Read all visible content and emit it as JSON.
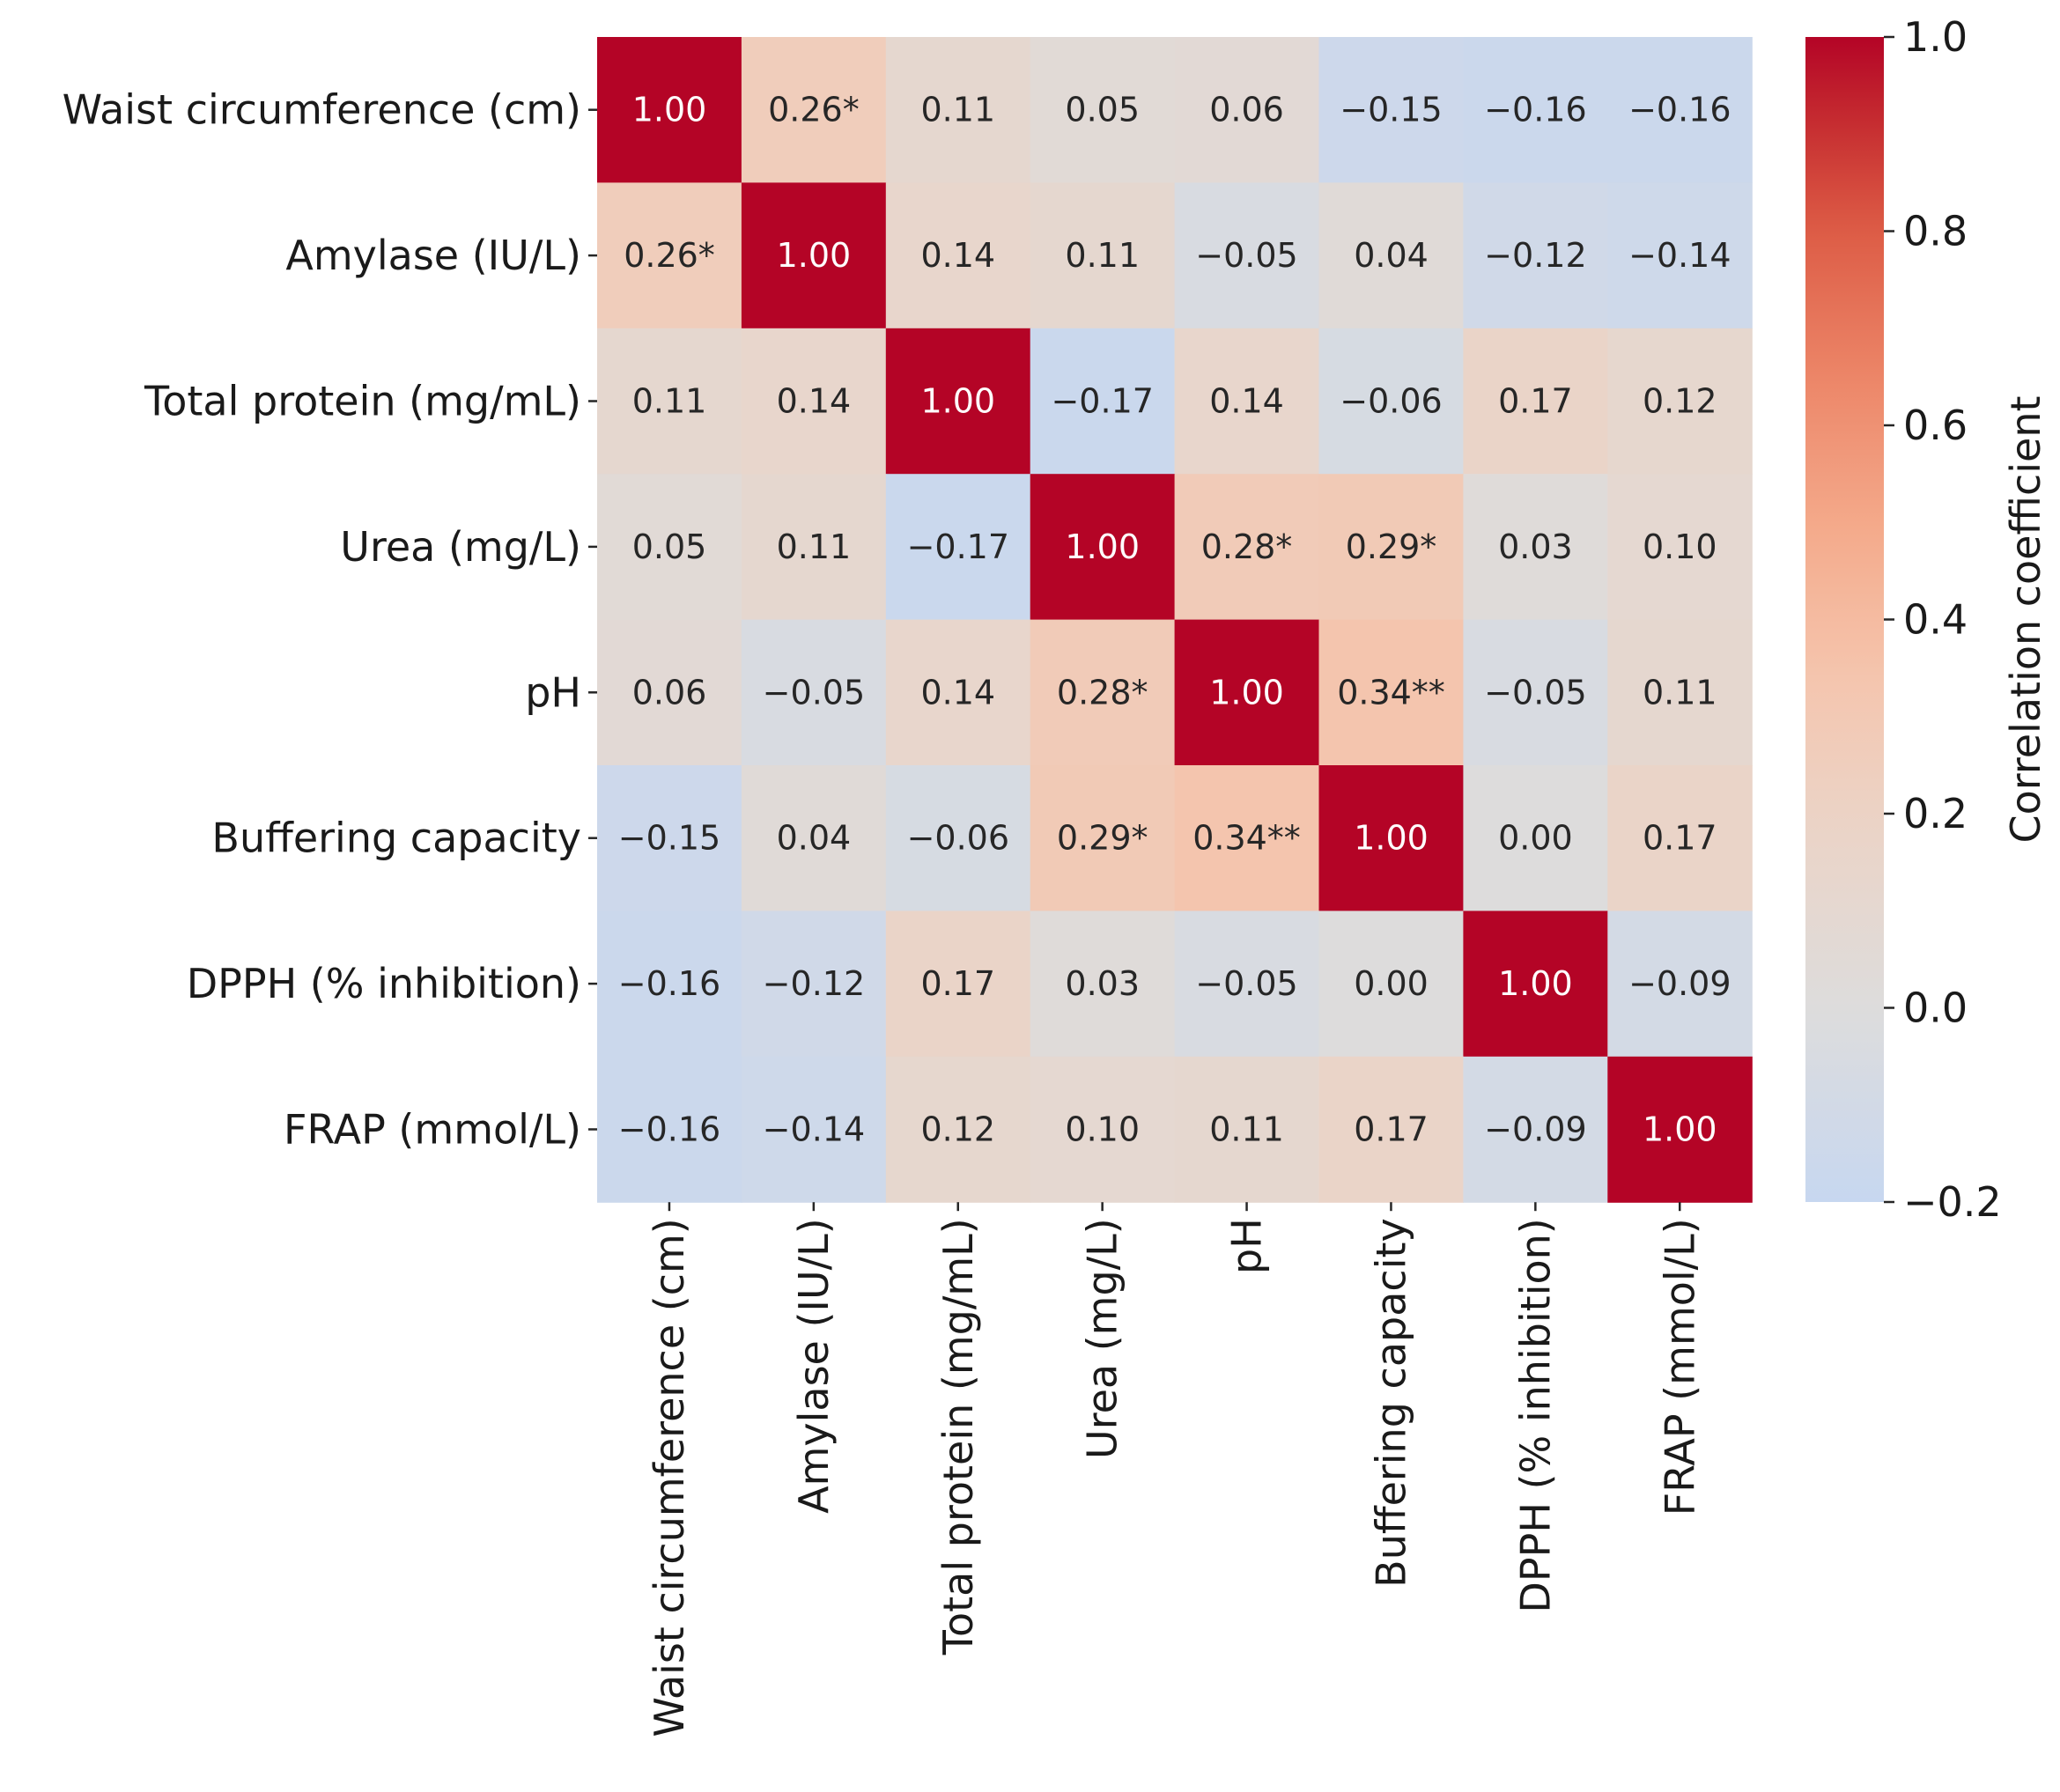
{
  "chart_data": {
    "type": "heatmap",
    "title": "",
    "xlabel": "",
    "ylabel": "",
    "variables": [
      "Waist circumference (cm)",
      "Amylase (IU/L)",
      "Total protein (mg/mL)",
      "Urea (mg/L)",
      "pH",
      "Buffering capacity",
      "DPPH (% inhibition)",
      "FRAP (mmol/L)"
    ],
    "values": [
      [
        1.0,
        0.26,
        0.11,
        0.05,
        0.06,
        -0.15,
        -0.16,
        -0.16
      ],
      [
        0.26,
        1.0,
        0.14,
        0.11,
        -0.05,
        0.04,
        -0.12,
        -0.14
      ],
      [
        0.11,
        0.14,
        1.0,
        -0.17,
        0.14,
        -0.06,
        0.17,
        0.12
      ],
      [
        0.05,
        0.11,
        -0.17,
        1.0,
        0.28,
        0.29,
        0.03,
        0.1
      ],
      [
        0.06,
        -0.05,
        0.14,
        0.28,
        1.0,
        0.34,
        -0.05,
        0.11
      ],
      [
        -0.15,
        0.04,
        -0.06,
        0.29,
        0.34,
        1.0,
        0.0,
        0.17
      ],
      [
        -0.16,
        -0.12,
        0.17,
        0.03,
        -0.05,
        0.0,
        1.0,
        -0.09
      ],
      [
        -0.16,
        -0.14,
        0.12,
        0.1,
        0.11,
        0.17,
        -0.09,
        1.0
      ]
    ],
    "annotations": [
      [
        "1.00",
        "0.26*",
        "0.11",
        "0.05",
        "0.06",
        "−0.15",
        "−0.16",
        "−0.16"
      ],
      [
        "0.26*",
        "1.00",
        "0.14",
        "0.11",
        "−0.05",
        "0.04",
        "−0.12",
        "−0.14"
      ],
      [
        "0.11",
        "0.14",
        "1.00",
        "−0.17",
        "0.14",
        "−0.06",
        "0.17",
        "0.12"
      ],
      [
        "0.05",
        "0.11",
        "−0.17",
        "1.00",
        "0.28*",
        "0.29*",
        "0.03",
        "0.10"
      ],
      [
        "0.06",
        "−0.05",
        "0.14",
        "0.28*",
        "1.00",
        "0.34**",
        "−0.05",
        "0.11"
      ],
      [
        "−0.15",
        "0.04",
        "−0.06",
        "0.29*",
        "0.34**",
        "1.00",
        "0.00",
        "0.17"
      ],
      [
        "−0.16",
        "−0.12",
        "0.17",
        "0.03",
        "−0.05",
        "0.00",
        "1.00",
        "−0.09"
      ],
      [
        "−0.16",
        "−0.14",
        "0.12",
        "0.10",
        "0.11",
        "0.17",
        "−0.09",
        "1.00"
      ]
    ],
    "colorbar": {
      "label": "Correlation coefficient",
      "vmin": -0.2,
      "vmax": 1.0,
      "ticks": [
        -0.2,
        0.0,
        0.2,
        0.4,
        0.6,
        0.8,
        1.0
      ],
      "tick_labels": [
        "−0.2",
        "0.0",
        "0.2",
        "0.4",
        "0.6",
        "0.8",
        "1.0"
      ],
      "colormap": "coolwarm",
      "center": 0.0
    },
    "colors": {
      "negative_end": "#c7d7f0",
      "center": "#dddcdc",
      "positive_end": "#b40426",
      "annotation_dark": "#262626",
      "annotation_light": "#ffffff"
    }
  }
}
